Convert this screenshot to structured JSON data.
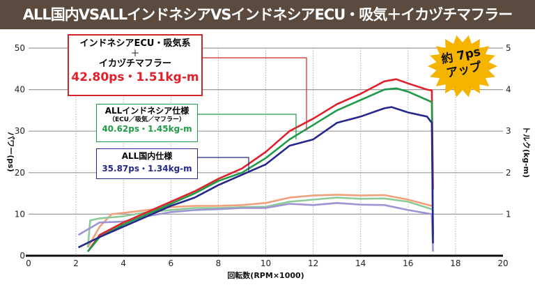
{
  "header": {
    "title": "ALL国内VSALLインドネシアVSインドネシアECU・吸気＋イカヅチマフラー"
  },
  "badge": {
    "line1": "約 7ps",
    "line2": "アップ",
    "color": "#f5b400"
  },
  "boxes": {
    "red": {
      "line1": "インドネシアECU・吸気系",
      "plus": "＋",
      "line2": "イカヅチマフラー",
      "value": "42.80ps・1.51kg-m",
      "color": "#e0202a"
    },
    "green": {
      "line1": "ALLインドネシア仕様",
      "line2": "（ECU／吸気／マフラー）",
      "value": "40.62ps・1.45kg-m",
      "color": "#1e9a48"
    },
    "blue": {
      "line1": "ALL国内仕様",
      "value": "35.87ps・1.34kg-m",
      "color": "#25288a"
    }
  },
  "chart_data": {
    "type": "line",
    "xlabel": "回転数(RPM×1000)",
    "ylabel": "パワー(ps)",
    "y2label": "トルク(kg-m)",
    "xlim": [
      0,
      20
    ],
    "ylim": [
      0,
      50
    ],
    "y2lim": [
      0,
      5
    ],
    "xticks": [
      "0",
      "2",
      "4",
      "6",
      "8",
      "10",
      "12",
      "14",
      "16",
      "18",
      "20"
    ],
    "yticks": [
      "0",
      "10",
      "20",
      "30",
      "40",
      "50"
    ],
    "y2ticks": [
      "1",
      "2",
      "3",
      "4",
      "5"
    ],
    "grid": true,
    "series": [
      {
        "axis": "power",
        "color": "#e0202a",
        "x": [
          2.5,
          3,
          4,
          5,
          6,
          7,
          8,
          9,
          10,
          11,
          12,
          13,
          14,
          15,
          15.5,
          16,
          16.8,
          17,
          17.05
        ],
        "y": [
          1,
          5,
          8,
          10.5,
          13,
          15.5,
          18.5,
          21,
          25,
          30,
          33,
          36.5,
          39,
          42,
          42.5,
          41.5,
          40,
          39.8,
          16
        ]
      },
      {
        "axis": "power",
        "color": "#1e9a48",
        "x": [
          2.5,
          3,
          4,
          5,
          6,
          7,
          8,
          9,
          10,
          11,
          12,
          13,
          14,
          15,
          15.5,
          16,
          17,
          17.05
        ],
        "y": [
          1,
          4.5,
          7.5,
          10,
          12.5,
          15,
          18,
          20,
          23.5,
          28,
          31.5,
          35,
          37.5,
          40,
          40.3,
          39.5,
          37,
          5
        ]
      },
      {
        "axis": "power",
        "color": "#25288a",
        "x": [
          2.1,
          3,
          4,
          5,
          6,
          7,
          8,
          9,
          10,
          11,
          12,
          13,
          14,
          15,
          15.3,
          16,
          16.8,
          17,
          17.05
        ],
        "y": [
          2,
          4.5,
          7,
          9.5,
          12,
          14,
          17,
          19.5,
          22,
          26.5,
          28,
          32,
          33.5,
          35.5,
          35.8,
          34.5,
          33.5,
          32,
          3
        ]
      },
      {
        "axis": "torque",
        "color": "#f0a07a",
        "x": [
          2.5,
          3,
          3.5,
          4,
          5,
          6,
          7,
          8,
          9,
          10,
          11,
          12,
          13,
          14,
          15,
          16,
          17
        ],
        "y": [
          0.2,
          0.7,
          1.0,
          1.03,
          1.1,
          1.17,
          1.2,
          1.2,
          1.22,
          1.27,
          1.4,
          1.45,
          1.47,
          1.45,
          1.46,
          1.35,
          1.2
        ]
      },
      {
        "axis": "torque",
        "color": "#8ccb98",
        "x": [
          2.5,
          2.6,
          3,
          4,
          5,
          6,
          7,
          8,
          9,
          10,
          11,
          12,
          13,
          14,
          15,
          16,
          17
        ],
        "y": [
          0.2,
          0.85,
          0.9,
          0.95,
          1.05,
          1.1,
          1.15,
          1.15,
          1.17,
          1.18,
          1.3,
          1.35,
          1.4,
          1.37,
          1.38,
          1.3,
          1.12
        ]
      },
      {
        "axis": "torque",
        "color": "#9c94d4",
        "x": [
          2.1,
          3,
          4,
          5,
          6,
          7,
          8,
          9,
          10,
          11,
          12,
          13,
          14,
          15,
          16,
          17,
          17.05
        ],
        "y": [
          0.5,
          0.8,
          0.82,
          0.95,
          1.05,
          1.1,
          1.12,
          1.15,
          1.15,
          1.25,
          1.22,
          1.27,
          1.23,
          1.22,
          1.1,
          1.0,
          0.1
        ]
      }
    ]
  }
}
